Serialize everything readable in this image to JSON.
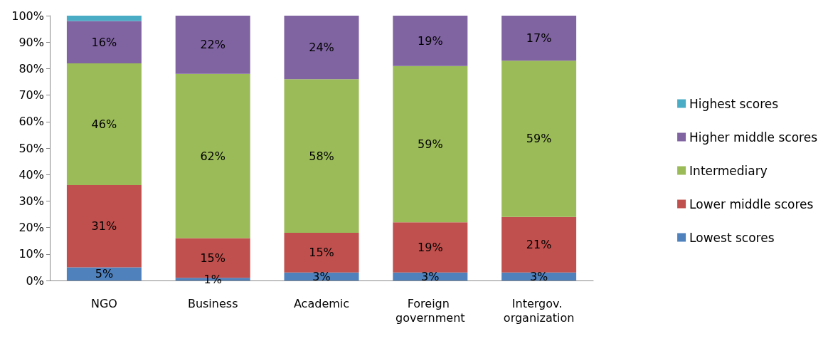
{
  "chart_data": {
    "type": "bar",
    "stacked": true,
    "categories": [
      "NGO",
      "Business",
      "Academic",
      "Foreign government",
      "Intergov. organization"
    ],
    "series": [
      {
        "name": "Lowest scores",
        "color": "#4f81bd",
        "values": [
          5,
          1,
          3,
          3,
          3
        ],
        "value_labels": [
          "5%",
          "1%",
          "3%",
          "3%",
          "3%"
        ]
      },
      {
        "name": "Lower middle scores",
        "color": "#c0504d",
        "values": [
          31,
          15,
          15,
          19,
          21
        ],
        "value_labels": [
          "31%",
          "15%",
          "15%",
          "19%",
          "21%"
        ]
      },
      {
        "name": "Intermediary",
        "color": "#9bbb59",
        "values": [
          46,
          62,
          58,
          59,
          59
        ],
        "value_labels": [
          "46%",
          "62%",
          "58%",
          "59%",
          "59%"
        ]
      },
      {
        "name": "Higher middle scores",
        "color": "#8064a2",
        "values": [
          16,
          22,
          24,
          19,
          17
        ],
        "value_labels": [
          "16%",
          "22%",
          "24%",
          "19%",
          "17%"
        ]
      },
      {
        "name": "Highest scores",
        "color": "#4bacc6",
        "values": [
          2,
          0,
          0,
          0,
          0
        ],
        "value_labels": [
          null,
          null,
          null,
          null,
          null
        ]
      }
    ],
    "ylim": [
      0,
      100
    ],
    "yticks": [
      {
        "value": 0,
        "label": "0%"
      },
      {
        "value": 10,
        "label": "10%"
      },
      {
        "value": 20,
        "label": "20%"
      },
      {
        "value": 30,
        "label": "30%"
      },
      {
        "value": 40,
        "label": "40%"
      },
      {
        "value": 50,
        "label": "50%"
      },
      {
        "value": 60,
        "label": "60%"
      },
      {
        "value": 70,
        "label": "70%"
      },
      {
        "value": 80,
        "label": "80%"
      },
      {
        "value": 90,
        "label": "90%"
      },
      {
        "value": 100,
        "label": "100%"
      }
    ],
    "grid": false,
    "legend": "right"
  }
}
